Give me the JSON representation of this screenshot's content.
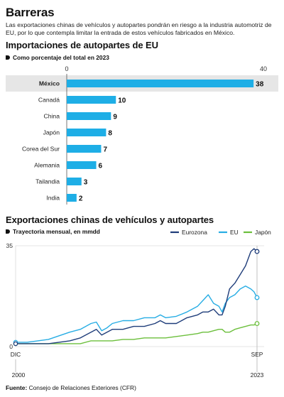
{
  "header": {
    "title": "Barreras",
    "subtitle": "Las exportaciones chinas de vehículos y autopartes pondrán en riesgo a la industria automotriz de EU, por lo que contempla limitar la entrada de estos vehículos fabricados en México."
  },
  "charts": {
    "imports": {
      "title": "Importaciones de autopartes de EU",
      "subtitle": "Como porcentaje del total en 2023"
    },
    "exports": {
      "title": "Exportaciones chinas de vehículos y autopartes",
      "subtitle": "Trayectoria mensual, en mmdd"
    }
  },
  "footer": {
    "source_label": "Fuente:",
    "source_text": "Consejo de Relaciones Exteriores (CFR)"
  },
  "colors": {
    "bar": "#1eaee6",
    "highlight_band": "#e6e6e6",
    "eurozona": "#1f3d7a",
    "eu": "#27ade4",
    "japon": "#6cbf3c",
    "grid": "#cccccc"
  },
  "chart_data": [
    {
      "type": "bar",
      "orientation": "horizontal",
      "title": "Importaciones de autopartes de EU",
      "subtitle": "Como porcentaje del total en 2023",
      "categories": [
        "México",
        "Canadá",
        "China",
        "Japón",
        "Corea del Sur",
        "Alemania",
        "Tailandia",
        "India"
      ],
      "values": [
        38,
        10,
        9,
        8,
        7,
        6,
        3,
        2
      ],
      "highlighted": "México",
      "xlim": [
        0,
        40
      ],
      "xticks": [
        0,
        40
      ]
    },
    {
      "type": "line",
      "title": "Exportaciones chinas de vehículos y autopartes",
      "subtitle": "Trayectoria mensual, en mmdd",
      "ylim": [
        0,
        35
      ],
      "yticks": [
        0,
        35
      ],
      "x_start": "DIC 2000",
      "x_end": "SEP 2023",
      "x_labels": [
        {
          "month": "DIC",
          "year": "2000"
        },
        {
          "month": "SEP",
          "year": "2023"
        }
      ],
      "x": [
        2000.92,
        2002,
        2004,
        2006,
        2007,
        2008,
        2008.5,
        2009,
        2009.5,
        2010,
        2011,
        2012,
        2013,
        2014,
        2014.5,
        2015,
        2016,
        2017,
        2018,
        2018.5,
        2019,
        2019.5,
        2020,
        2020.3,
        2020.6,
        2021,
        2021.5,
        2022,
        2022.5,
        2023,
        2023.3,
        2023.58
      ],
      "series": [
        {
          "name": "Eurozona",
          "values": [
            1,
            1,
            1,
            2,
            3,
            5,
            6,
            4,
            5,
            6,
            6,
            7,
            7,
            8,
            9,
            8,
            8,
            10,
            11,
            12,
            12,
            13,
            11,
            11,
            14,
            20,
            22,
            25,
            28,
            33,
            34,
            33
          ]
        },
        {
          "name": "EU",
          "values": [
            1.5,
            1.5,
            2.5,
            5,
            6,
            8,
            8.5,
            5.5,
            6.5,
            8,
            9,
            9,
            10,
            10,
            11,
            10,
            10.5,
            12,
            14,
            16,
            18,
            15,
            14,
            12,
            15,
            17,
            18,
            20,
            21,
            20,
            19,
            17
          ]
        },
        {
          "name": "Japón",
          "values": [
            1,
            1,
            1,
            1,
            1,
            2,
            2,
            2,
            2,
            2,
            2.5,
            2.5,
            3,
            3,
            3,
            3,
            3.5,
            4,
            4.5,
            5,
            5,
            5.5,
            6,
            6,
            5,
            5,
            6,
            6.5,
            7,
            7.5,
            7.5,
            8
          ]
        }
      ]
    }
  ]
}
